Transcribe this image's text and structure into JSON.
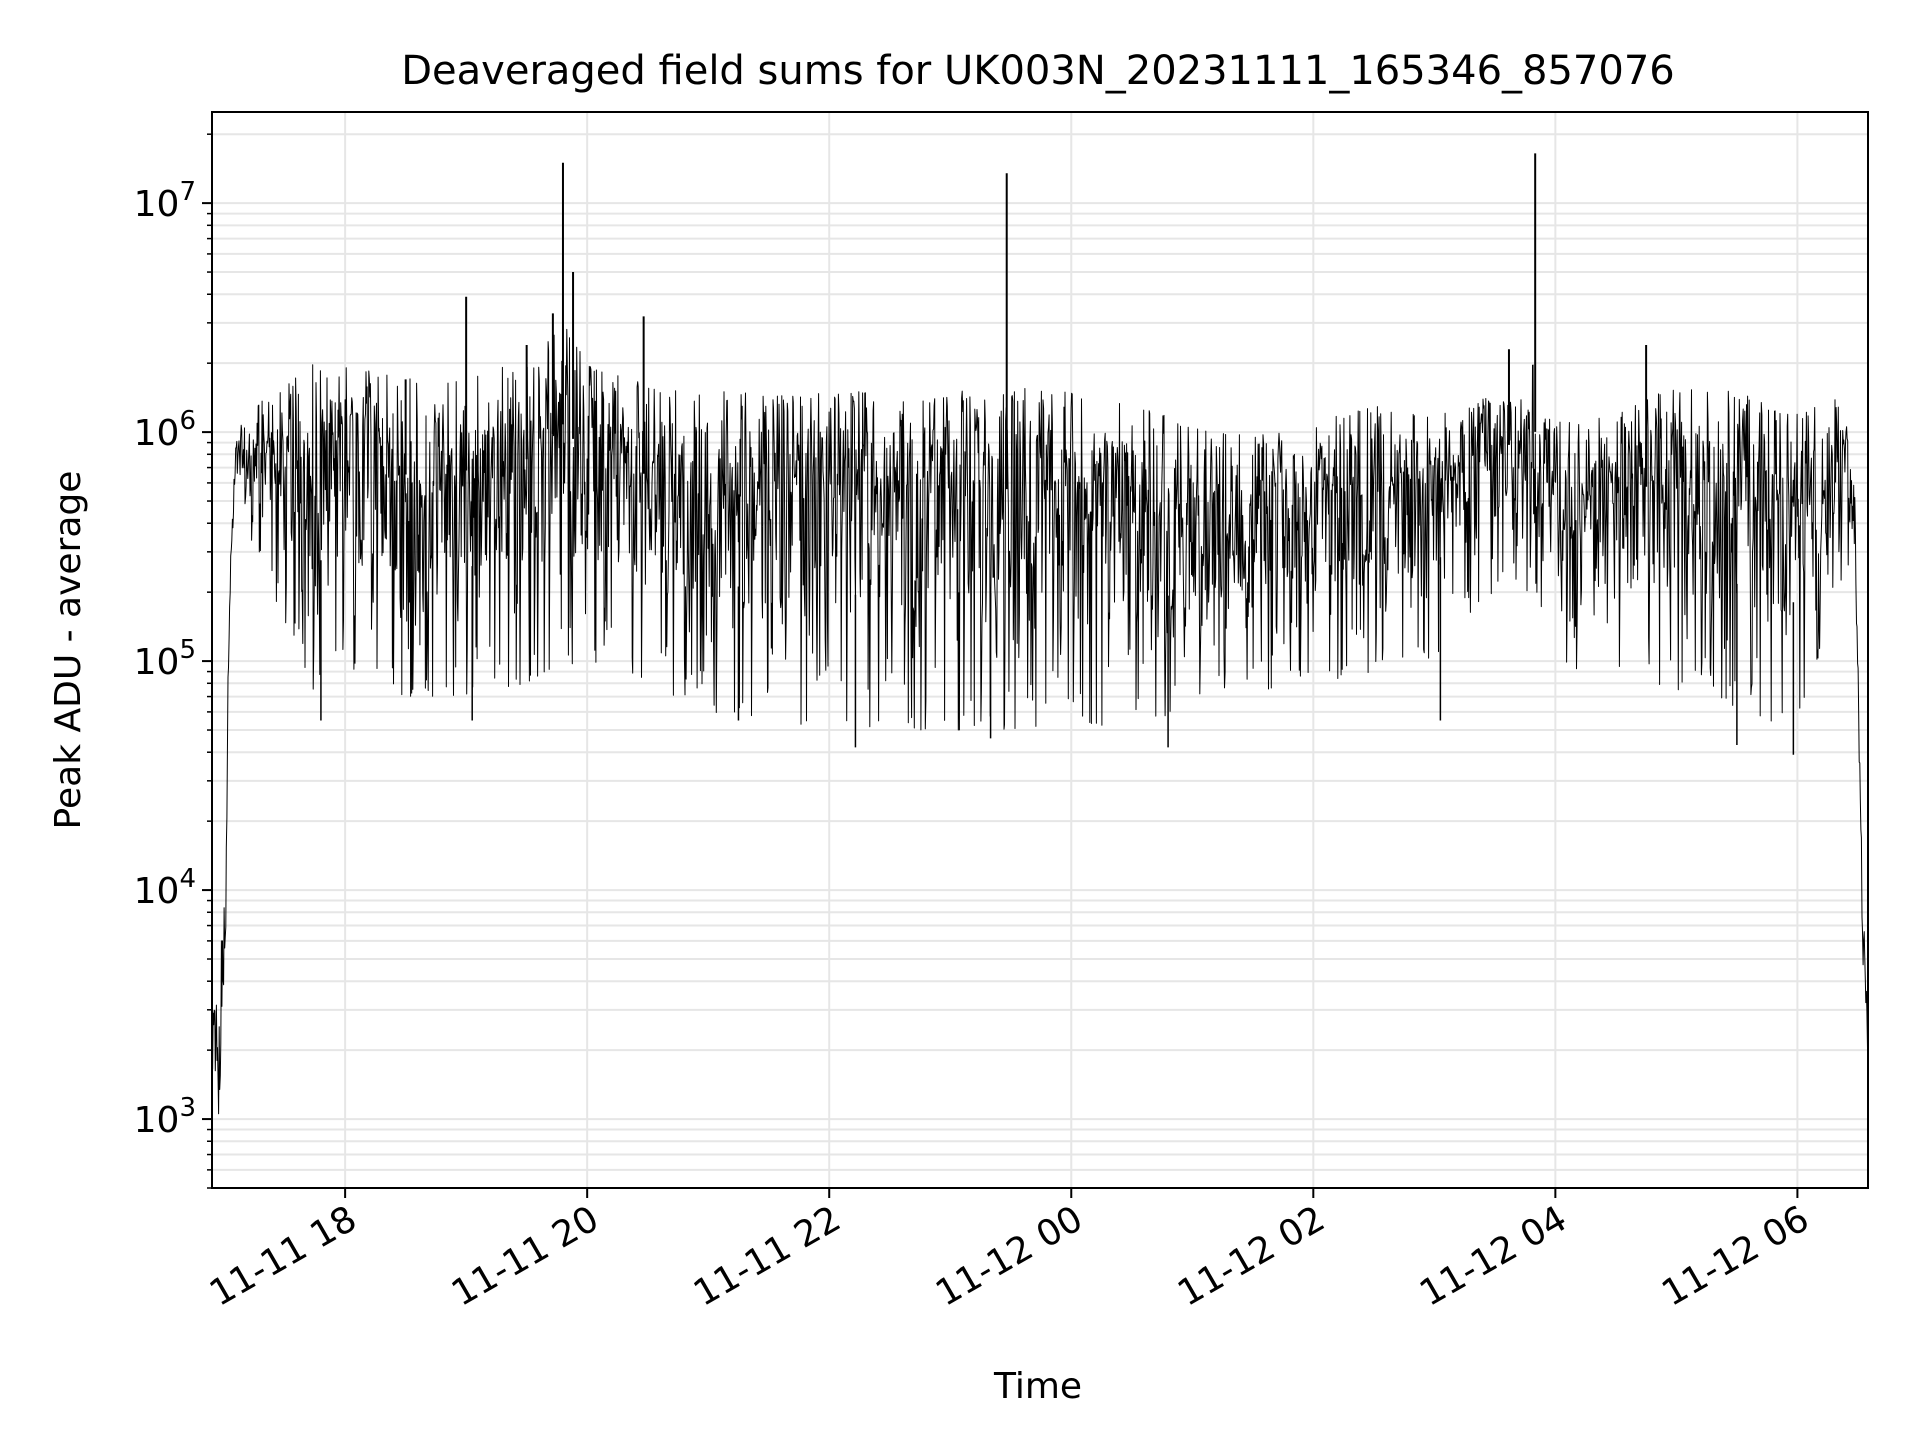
{
  "chart_data": {
    "type": "line",
    "title": "Deaveraged field sums for UK003N_20231111_165346_857076",
    "xlabel": "Time",
    "ylabel": "Peak ADU - average",
    "xscale": "time",
    "yscale": "log",
    "xlim": [
      "2023-11-11 16:54",
      "2023-11-12 06:35"
    ],
    "ylim": [
      500,
      25000000
    ],
    "grid": true,
    "line_color": "#000000",
    "grid_color": "#e6e6e6",
    "x_ticks": [
      {
        "value": "2023-11-11 18:00",
        "label": "11-11 18"
      },
      {
        "value": "2023-11-11 20:00",
        "label": "11-11 20"
      },
      {
        "value": "2023-11-11 22:00",
        "label": "11-11 22"
      },
      {
        "value": "2023-11-12 00:00",
        "label": "11-12 00"
      },
      {
        "value": "2023-11-12 02:00",
        "label": "11-12 02"
      },
      {
        "value": "2023-11-12 04:00",
        "label": "11-12 04"
      },
      {
        "value": "2023-11-12 06:00",
        "label": "11-12 06"
      }
    ],
    "y_ticks": [
      {
        "value": 1000,
        "base": "10",
        "exp": "3"
      },
      {
        "value": 10000,
        "base": "10",
        "exp": "4"
      },
      {
        "value": 100000,
        "base": "10",
        "exp": "5"
      },
      {
        "value": 1000000,
        "base": "10",
        "exp": "6"
      },
      {
        "value": 10000000,
        "base": "10",
        "exp": "7"
      }
    ],
    "series": [
      {
        "envelope": [
          {
            "x": "2023-11-11 16:54",
            "low": 1400,
            "high": 2500
          },
          {
            "x": "2023-11-11 16:57",
            "low": 800,
            "high": 5800
          },
          {
            "x": "2023-11-11 17:00",
            "low": 2500,
            "high": 9000
          },
          {
            "x": "2023-11-11 17:03",
            "low": 150000,
            "high": 400000
          },
          {
            "x": "2023-11-11 17:06",
            "low": 600000,
            "high": 1000000
          },
          {
            "x": "2023-11-11 17:15",
            "low": 300000,
            "high": 1300000
          },
          {
            "x": "2023-11-11 17:30",
            "low": 150000,
            "high": 1600000
          },
          {
            "x": "2023-11-11 17:45",
            "low": 70000,
            "high": 2000000
          },
          {
            "x": "2023-11-11 18:00",
            "low": 90000,
            "high": 2000000
          },
          {
            "x": "2023-11-11 18:30",
            "low": 70000,
            "high": 1700000
          },
          {
            "x": "2023-11-11 19:00",
            "low": 70000,
            "high": 1800000
          },
          {
            "x": "2023-11-11 19:30",
            "low": 80000,
            "high": 2000000
          },
          {
            "x": "2023-11-11 19:48",
            "low": 100000,
            "high": 3000000
          },
          {
            "x": "2023-11-11 20:00",
            "low": 80000,
            "high": 2000000
          },
          {
            "x": "2023-11-11 20:30",
            "low": 80000,
            "high": 1600000
          },
          {
            "x": "2023-11-11 21:00",
            "low": 60000,
            "high": 1500000
          },
          {
            "x": "2023-11-11 21:30",
            "low": 55000,
            "high": 1500000
          },
          {
            "x": "2023-11-11 22:00",
            "low": 50000,
            "high": 1500000
          },
          {
            "x": "2023-11-11 22:30",
            "low": 50000,
            "high": 1500000
          },
          {
            "x": "2023-11-11 23:00",
            "low": 50000,
            "high": 1500000
          },
          {
            "x": "2023-11-11 23:30",
            "low": 50000,
            "high": 1600000
          },
          {
            "x": "2023-11-12 00:00",
            "low": 50000,
            "high": 1500000
          },
          {
            "x": "2023-11-12 00:30",
            "low": 55000,
            "high": 1300000
          },
          {
            "x": "2023-11-12 01:00",
            "low": 60000,
            "high": 1100000
          },
          {
            "x": "2023-11-12 01:30",
            "low": 70000,
            "high": 950000
          },
          {
            "x": "2023-11-12 02:00",
            "low": 80000,
            "high": 1100000
          },
          {
            "x": "2023-11-12 02:30",
            "low": 90000,
            "high": 1300000
          },
          {
            "x": "2023-11-12 03:00",
            "low": 100000,
            "high": 1200000
          },
          {
            "x": "2023-11-12 03:30",
            "low": 200000,
            "high": 1500000
          },
          {
            "x": "2023-11-12 03:50",
            "low": 200000,
            "high": 2000000
          },
          {
            "x": "2023-11-12 04:00",
            "low": 100000,
            "high": 1200000
          },
          {
            "x": "2023-11-12 04:30",
            "low": 80000,
            "high": 1200000
          },
          {
            "x": "2023-11-12 05:00",
            "low": 70000,
            "high": 1600000
          },
          {
            "x": "2023-11-12 05:30",
            "low": 60000,
            "high": 1500000
          },
          {
            "x": "2023-11-12 06:00",
            "low": 50000,
            "high": 1200000
          },
          {
            "x": "2023-11-12 06:20",
            "low": 200000,
            "high": 1400000
          },
          {
            "x": "2023-11-12 06:28",
            "low": 300000,
            "high": 900000
          },
          {
            "x": "2023-11-12 06:32",
            "low": 6000,
            "high": 12000
          },
          {
            "x": "2023-11-12 06:35",
            "low": 1600,
            "high": 3000
          }
        ],
        "spikes": [
          {
            "x": "2023-11-11 18:30",
            "y": 1700000
          },
          {
            "x": "2023-11-11 19:00",
            "y": 3900000
          },
          {
            "x": "2023-11-11 19:30",
            "y": 2400000
          },
          {
            "x": "2023-11-11 19:43",
            "y": 3300000
          },
          {
            "x": "2023-11-11 19:48",
            "y": 15000000
          },
          {
            "x": "2023-11-11 19:53",
            "y": 5000000
          },
          {
            "x": "2023-11-11 20:28",
            "y": 3200000
          },
          {
            "x": "2023-11-11 23:28",
            "y": 13500000
          },
          {
            "x": "2023-11-12 03:37",
            "y": 2300000
          },
          {
            "x": "2023-11-12 03:50",
            "y": 16500000
          },
          {
            "x": "2023-11-12 04:45",
            "y": 2400000
          }
        ],
        "dips": [
          {
            "x": "2023-11-11 17:48",
            "y": 55000
          },
          {
            "x": "2023-11-11 19:03",
            "y": 55000
          },
          {
            "x": "2023-11-11 21:15",
            "y": 55000
          },
          {
            "x": "2023-11-11 22:13",
            "y": 42000
          },
          {
            "x": "2023-11-11 23:20",
            "y": 46000
          },
          {
            "x": "2023-11-12 00:48",
            "y": 42000
          },
          {
            "x": "2023-11-12 03:03",
            "y": 55000
          },
          {
            "x": "2023-11-12 05:30",
            "y": 43000
          },
          {
            "x": "2023-11-12 05:58",
            "y": 39000
          }
        ]
      }
    ]
  }
}
